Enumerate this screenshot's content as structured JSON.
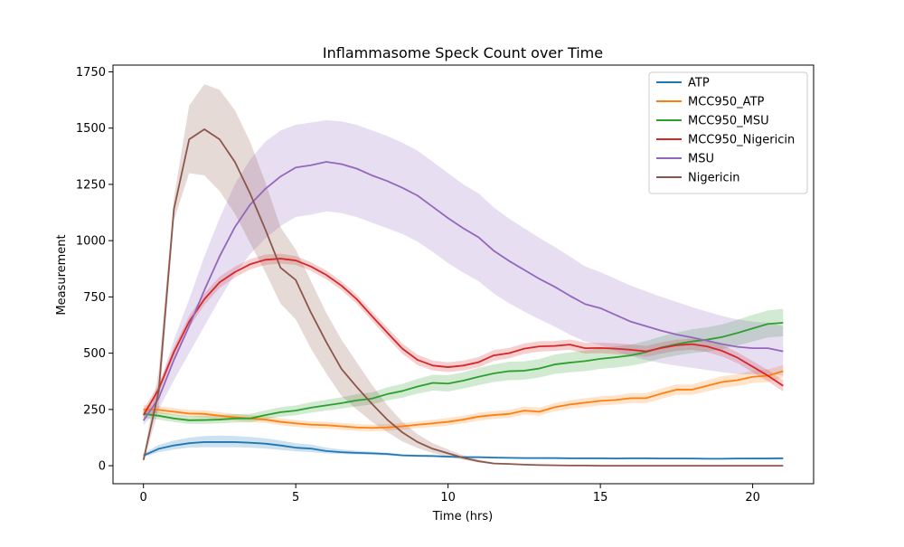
{
  "chart_data": {
    "type": "line",
    "title": "Inflammasome Speck Count over Time",
    "xlabel": "Time (hrs)",
    "ylabel": "Measurement",
    "xlim": [
      -1,
      22
    ],
    "ylim": [
      -80,
      1780
    ],
    "xticks": [
      0,
      5,
      10,
      15,
      20
    ],
    "yticks": [
      0,
      250,
      500,
      750,
      1000,
      1250,
      1500,
      1750
    ],
    "grid": false,
    "legend_position": "top-right",
    "x": [
      0,
      0.5,
      1,
      1.5,
      2,
      2.5,
      3,
      3.5,
      4,
      4.5,
      5,
      5.5,
      6,
      6.5,
      7,
      7.5,
      8,
      8.5,
      9,
      9.5,
      10,
      10.5,
      11,
      11.5,
      12,
      12.5,
      13,
      13.5,
      14,
      14.5,
      15,
      15.5,
      16,
      16.5,
      17,
      17.5,
      18,
      18.5,
      19,
      19.5,
      20,
      20.5,
      21
    ],
    "series": [
      {
        "name": "ATP",
        "color": "#1f77b4",
        "values": [
          45,
          75,
          90,
          100,
          105,
          105,
          105,
          102,
          98,
          90,
          80,
          76,
          65,
          60,
          57,
          55,
          52,
          46,
          44,
          43,
          40,
          38,
          38,
          36,
          35,
          34,
          34,
          34,
          33,
          33,
          33,
          32,
          33,
          33,
          32,
          32,
          32,
          31,
          31,
          32,
          32,
          32,
          33
        ],
        "lower": [
          38,
          60,
          72,
          80,
          82,
          82,
          82,
          80,
          76,
          70,
          64,
          60,
          55,
          52,
          50,
          48,
          45,
          41,
          39,
          38,
          36,
          34,
          33,
          32,
          31,
          30,
          30,
          29,
          29,
          28,
          28,
          28,
          28,
          28,
          28,
          28,
          27,
          27,
          27,
          27,
          27,
          27,
          27
        ],
        "upper": [
          55,
          92,
          112,
          125,
          132,
          134,
          132,
          128,
          122,
          112,
          100,
          94,
          80,
          72,
          66,
          62,
          58,
          51,
          49,
          48,
          45,
          43,
          42,
          40,
          39,
          38,
          38,
          38,
          37,
          37,
          37,
          36,
          37,
          37,
          36,
          36,
          36,
          35,
          35,
          36,
          37,
          37,
          38
        ]
      },
      {
        "name": "MCC950_ATP",
        "color": "#ff7f0e",
        "values": [
          250,
          248,
          240,
          232,
          230,
          222,
          215,
          210,
          205,
          195,
          188,
          182,
          180,
          175,
          170,
          168,
          170,
          175,
          182,
          188,
          195,
          205,
          218,
          225,
          230,
          245,
          240,
          260,
          272,
          280,
          288,
          292,
          300,
          300,
          320,
          338,
          338,
          355,
          372,
          380,
          395,
          400,
          420
        ],
        "lower": [
          228,
          232,
          225,
          218,
          214,
          206,
          200,
          195,
          190,
          180,
          173,
          167,
          165,
          160,
          155,
          153,
          155,
          160,
          167,
          172,
          178,
          188,
          200,
          208,
          213,
          227,
          222,
          242,
          253,
          260,
          268,
          272,
          278,
          278,
          297,
          315,
          315,
          330,
          346,
          354,
          368,
          372,
          392
        ],
        "upper": [
          272,
          265,
          256,
          248,
          246,
          238,
          230,
          225,
          220,
          210,
          203,
          197,
          195,
          190,
          185,
          183,
          185,
          190,
          197,
          204,
          212,
          222,
          236,
          242,
          248,
          263,
          258,
          278,
          291,
          300,
          308,
          312,
          322,
          322,
          343,
          361,
          361,
          380,
          398,
          406,
          422,
          428,
          448
        ]
      },
      {
        "name": "MCC950_MSU",
        "color": "#2ca02c",
        "values": [
          230,
          222,
          210,
          202,
          203,
          205,
          210,
          210,
          225,
          238,
          245,
          258,
          268,
          278,
          290,
          298,
          318,
          332,
          352,
          368,
          365,
          378,
          395,
          410,
          420,
          422,
          432,
          450,
          458,
          465,
          475,
          482,
          490,
          505,
          525,
          540,
          552,
          560,
          572,
          590,
          610,
          630,
          635
        ],
        "lower": [
          210,
          205,
          194,
          186,
          186,
          188,
          192,
          192,
          206,
          218,
          224,
          236,
          245,
          254,
          264,
          272,
          290,
          302,
          320,
          334,
          330,
          343,
          358,
          372,
          380,
          382,
          392,
          408,
          415,
          420,
          430,
          436,
          444,
          458,
          477,
          490,
          500,
          507,
          518,
          534,
          552,
          570,
          575
        ],
        "upper": [
          250,
          240,
          228,
          220,
          222,
          224,
          230,
          230,
          246,
          260,
          268,
          282,
          293,
          304,
          318,
          326,
          348,
          364,
          386,
          404,
          402,
          415,
          434,
          450,
          462,
          464,
          474,
          494,
          503,
          512,
          522,
          530,
          538,
          554,
          575,
          592,
          606,
          615,
          628,
          648,
          670,
          690,
          697
        ]
      },
      {
        "name": "MCC950_Nigericin",
        "color": "#d62728",
        "values": [
          225,
          340,
          505,
          640,
          740,
          815,
          860,
          895,
          915,
          920,
          912,
          885,
          848,
          800,
          740,
          665,
          592,
          520,
          470,
          445,
          438,
          445,
          460,
          490,
          500,
          520,
          530,
          532,
          538,
          522,
          523,
          520,
          515,
          508,
          523,
          535,
          540,
          530,
          510,
          480,
          440,
          400,
          355
        ],
        "lower": [
          200,
          318,
          482,
          615,
          715,
          790,
          836,
          872,
          892,
          898,
          892,
          866,
          828,
          780,
          720,
          644,
          570,
          497,
          447,
          423,
          416,
          423,
          437,
          466,
          477,
          497,
          507,
          510,
          515,
          498,
          500,
          496,
          491,
          484,
          498,
          510,
          515,
          505,
          485,
          456,
          415,
          375,
          330
        ],
        "upper": [
          250,
          362,
          528,
          665,
          765,
          840,
          884,
          918,
          938,
          942,
          932,
          904,
          868,
          820,
          760,
          686,
          614,
          543,
          493,
          467,
          460,
          467,
          483,
          514,
          523,
          543,
          553,
          554,
          561,
          546,
          546,
          544,
          539,
          532,
          548,
          560,
          565,
          555,
          535,
          504,
          465,
          425,
          380
        ]
      },
      {
        "name": "MSU",
        "color": "#9467bd",
        "values": [
          200,
          300,
          470,
          620,
          780,
          930,
          1060,
          1160,
          1230,
          1285,
          1325,
          1335,
          1350,
          1340,
          1320,
          1290,
          1265,
          1235,
          1200,
          1150,
          1100,
          1055,
          1015,
          955,
          910,
          870,
          830,
          795,
          755,
          718,
          700,
          670,
          640,
          620,
          600,
          583,
          570,
          555,
          540,
          528,
          522,
          522,
          508
        ],
        "lower": [
          180,
          250,
          380,
          500,
          620,
          740,
          850,
          940,
          1010,
          1065,
          1105,
          1115,
          1130,
          1122,
          1105,
          1080,
          1055,
          1030,
          995,
          950,
          900,
          858,
          820,
          765,
          722,
          685,
          650,
          618,
          582,
          552,
          535,
          510,
          487,
          470,
          456,
          444,
          435,
          425,
          415,
          407,
          405,
          408,
          400
        ],
        "upper": [
          225,
          350,
          560,
          740,
          930,
          1100,
          1250,
          1360,
          1440,
          1490,
          1515,
          1525,
          1535,
          1530,
          1515,
          1490,
          1465,
          1435,
          1400,
          1350,
          1300,
          1250,
          1210,
          1148,
          1098,
          1055,
          1012,
          972,
          930,
          885,
          860,
          830,
          800,
          775,
          750,
          728,
          705,
          685,
          665,
          650,
          640,
          636,
          620
        ]
      },
      {
        "name": "Nigericin",
        "color": "#8c564b",
        "values": [
          25,
          330,
          1140,
          1450,
          1495,
          1450,
          1350,
          1210,
          1050,
          880,
          825,
          680,
          550,
          430,
          350,
          275,
          205,
          148,
          105,
          75,
          55,
          35,
          20,
          10,
          8,
          5,
          3,
          2,
          1,
          1,
          0,
          0,
          0,
          0,
          0,
          0,
          0,
          0,
          0,
          0,
          0,
          0,
          0
        ],
        "lower": [
          15,
          250,
          1090,
          1300,
          1290,
          1220,
          1120,
          990,
          860,
          720,
          650,
          520,
          410,
          310,
          250,
          195,
          150,
          108,
          78,
          56,
          40,
          26,
          14,
          7,
          5,
          3,
          2,
          1,
          0,
          0,
          0,
          0,
          0,
          0,
          0,
          0,
          0,
          0,
          0,
          0,
          0,
          0,
          0
        ],
        "upper": [
          35,
          420,
          1190,
          1600,
          1695,
          1670,
          1580,
          1440,
          1260,
          1060,
          960,
          820,
          680,
          560,
          460,
          360,
          270,
          195,
          140,
          100,
          72,
          46,
          28,
          14,
          11,
          7,
          5,
          3,
          2,
          2,
          1,
          1,
          1,
          1,
          1,
          1,
          1,
          1,
          1,
          1,
          1,
          1,
          1
        ]
      }
    ]
  }
}
